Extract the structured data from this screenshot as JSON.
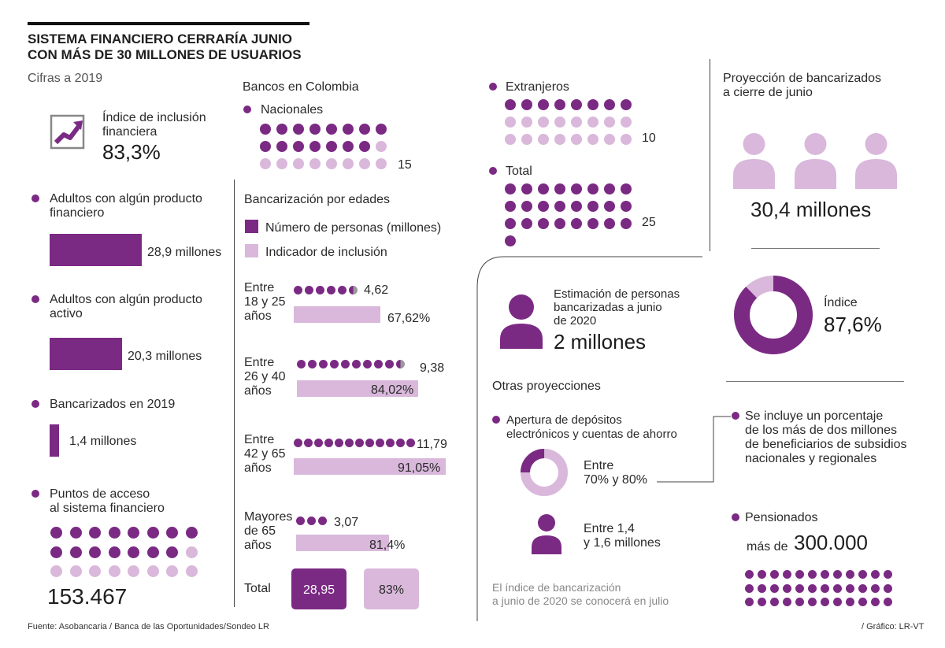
{
  "header": {
    "title_line1": "SISTEMA FINANCIERO CERRARÍA JUNIO",
    "title_line2": "CON MÁS DE 30 MILLONES DE USUARIOS",
    "subtitle": "Cifras a 2019"
  },
  "left": {
    "inclusion_label_1": "Índice de inclusión",
    "inclusion_label_2": "financiera",
    "inclusion_value": "83,3%",
    "adults_product_1": "Adultos con algún producto",
    "adults_product_2": "financiero",
    "adults_product_value": "28,9 millones",
    "adults_active_1": "Adultos con algún producto",
    "adults_active_2": "activo",
    "adults_active_value": "20,3 millones",
    "banked_2019": "Bancarizados en 2019",
    "banked_2019_value": "1,4 millones",
    "access_1": "Puntos de acceso",
    "access_2": "al sistema financiero",
    "access_value": "153.467"
  },
  "banks": {
    "title": "Bancos en Colombia",
    "nacionales": "Nacionales",
    "nacionales_count": "15",
    "extranjeros": "Extranjeros",
    "extranjeros_count": "10",
    "total": "Total",
    "total_count": "25"
  },
  "ages": {
    "title": "Bancarización por edades",
    "legend_people": "Número de personas (millones)",
    "legend_index": "Indicador de inclusión",
    "groups": [
      {
        "l1": "Entre",
        "l2": "18 y 25",
        "l3": "años",
        "people": "4,62",
        "index": "67,62%",
        "index_value": 67.62
      },
      {
        "l1": "Entre",
        "l2": "26 y 40",
        "l3": "años",
        "people": "9,38",
        "index": "84,02%",
        "index_value": 84.02
      },
      {
        "l1": "Entre",
        "l2": "42 y 65",
        "l3": "años",
        "people": "11,79",
        "index": "91,05%",
        "index_value": 91.05
      },
      {
        "l1": "Mayores",
        "l2": "de 65",
        "l3": "años",
        "people": "3,07",
        "index": "81,4%",
        "index_value": 81.4
      }
    ],
    "total_label": "Total",
    "total_people": "28,95",
    "total_index": "83%"
  },
  "projection": {
    "title_1": "Proyección de bancarizados",
    "title_2": "a cierre de junio",
    "value": "30,4 millones",
    "index_label": "Índice",
    "index_value": "87,6%",
    "index_number": 87.6
  },
  "estimate": {
    "l1": "Estimación de personas",
    "l2": "bancarizadas a junio",
    "l3": "de 2020",
    "value": "2 millones"
  },
  "other": {
    "title": "Otras proyecciones",
    "deposits_1": "Apertura de depósitos",
    "deposits_2": "electrónicos y cuentas de ahorro",
    "range_1": "Entre",
    "range_2": "70% y 80%",
    "people_1": "Entre 1,4",
    "people_2": "y 1,6 millones",
    "note_1": "El índice de bancarización",
    "note_2": "a junio de 2020 se conocerá en julio"
  },
  "subsidies": {
    "l1": "Se incluye un porcentaje",
    "l2": "de los más de dos millones",
    "l3": "de beneficiarios de subsidios",
    "l4": "nacionales y regionales"
  },
  "pensioners": {
    "label": "Pensionados",
    "prefix": "más de",
    "value": "300.000"
  },
  "footer": {
    "source": "Fuente: Asobancaria /  Banca de las Oportunidades/Sondeo LR",
    "credit": "/ Gráfico: LR-VT"
  },
  "colors": {
    "dark": "#7b2a84",
    "light": "#d9b8db"
  }
}
